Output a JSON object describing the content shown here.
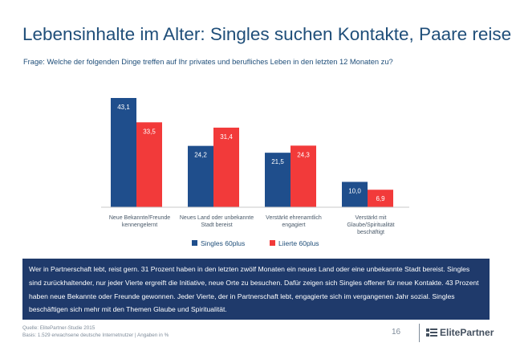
{
  "page": {
    "title": "Lebensinhalte im Alter: Singles suchen Kontakte, Paare reisen",
    "subtitle": "Frage: Welche der folgenden Dinge treffen auf Ihr privates und berufliches Leben in den letzten 12 Monaten zu?",
    "info_text": "Wer in Partnerschaft lebt, reist gern. 31 Prozent haben in den letzten zwölf Monaten ein neues Land oder eine unbekannte Stadt bereist. Singles sind zurückhaltender, nur jeder Vierte ergreift die Initiative, neue Orte zu besuchen. Dafür zeigen sich Singles offener für neue Kontakte. 43 Prozent haben neue Bekannte oder Freunde gewonnen. Jeder Vierte, der in Partnerschaft lebt, engagierte sich im vergangenen Jahr sozial. Singles beschäftigen sich mehr mit den Themen Glaube und Spiritualität.",
    "source": "Quelle:   ElitePartner-Studie 2015",
    "basis": "Basis: 1.529 erwachsene deutsche Internetnutzer | Angaben in %",
    "page_number": "16",
    "logo_text": "ElitePartner"
  },
  "colors": {
    "singles": "#1f4e8c",
    "liierte": "#f23a3a",
    "title": "#1f4e79",
    "box": "#1f3a6b"
  },
  "chart_data": {
    "type": "bar",
    "title": "",
    "categories": [
      [
        "Neue Bekannte/Freunde",
        "kennengelernt"
      ],
      [
        "Neues Land oder unbekannte",
        "Stadt bereist"
      ],
      [
        "Verstärkt ehrenamtlich",
        "engagiert"
      ],
      [
        "Verstärkt mit",
        "Glaube/Spiritualität",
        "beschäftigt"
      ]
    ],
    "series": [
      {
        "name": "Singles 60plus",
        "values": [
          43.1,
          24.2,
          21.5,
          10.0
        ],
        "labels": [
          "43,1",
          "24,2",
          "21,5",
          "10,0"
        ]
      },
      {
        "name": "Liierte 60plus",
        "values": [
          33.5,
          31.4,
          24.3,
          6.9
        ],
        "labels": [
          "33,5",
          "31,4",
          "24,3",
          "6,9"
        ]
      }
    ],
    "ylim": [
      0,
      45
    ],
    "grid": false,
    "legend": "bottom"
  }
}
